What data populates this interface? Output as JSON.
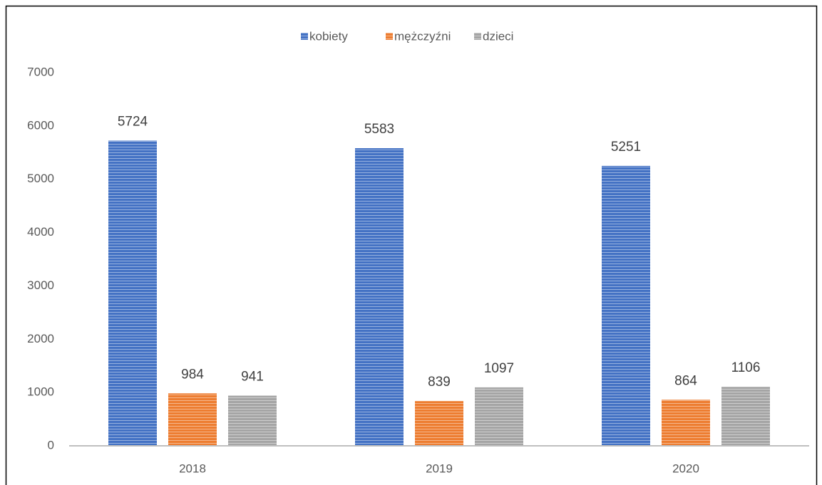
{
  "chart_data": {
    "type": "bar",
    "categories": [
      "2018",
      "2019",
      "2020"
    ],
    "series": [
      {
        "name": "kobiety",
        "color": "#4472c4",
        "values": [
          5724,
          5583,
          5251
        ]
      },
      {
        "name": "mężczyźni",
        "color": "#ed7d31",
        "values": [
          984,
          839,
          864
        ]
      },
      {
        "name": "dzieci",
        "color": "#a5a5a5",
        "values": [
          941,
          1097,
          1106
        ]
      }
    ],
    "ylim": [
      0,
      7000
    ],
    "yticks": [
      0,
      1000,
      2000,
      3000,
      4000,
      5000,
      6000,
      7000
    ],
    "grid": false,
    "legend": "top"
  }
}
